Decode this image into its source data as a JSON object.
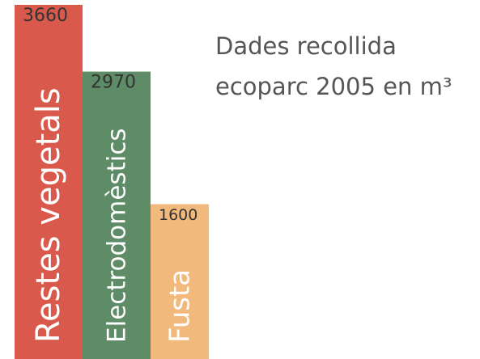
{
  "chart_data": {
    "type": "bar",
    "title": "Dades recollida ecoparc 2005 en m³",
    "categories": [
      "Restes vegetals",
      "Electrodomèstics",
      "Fusta"
    ],
    "values": [
      3660,
      2970,
      1600
    ],
    "colors": [
      "#d95a4c",
      "#5e8c66",
      "#f2b97c"
    ]
  }
}
